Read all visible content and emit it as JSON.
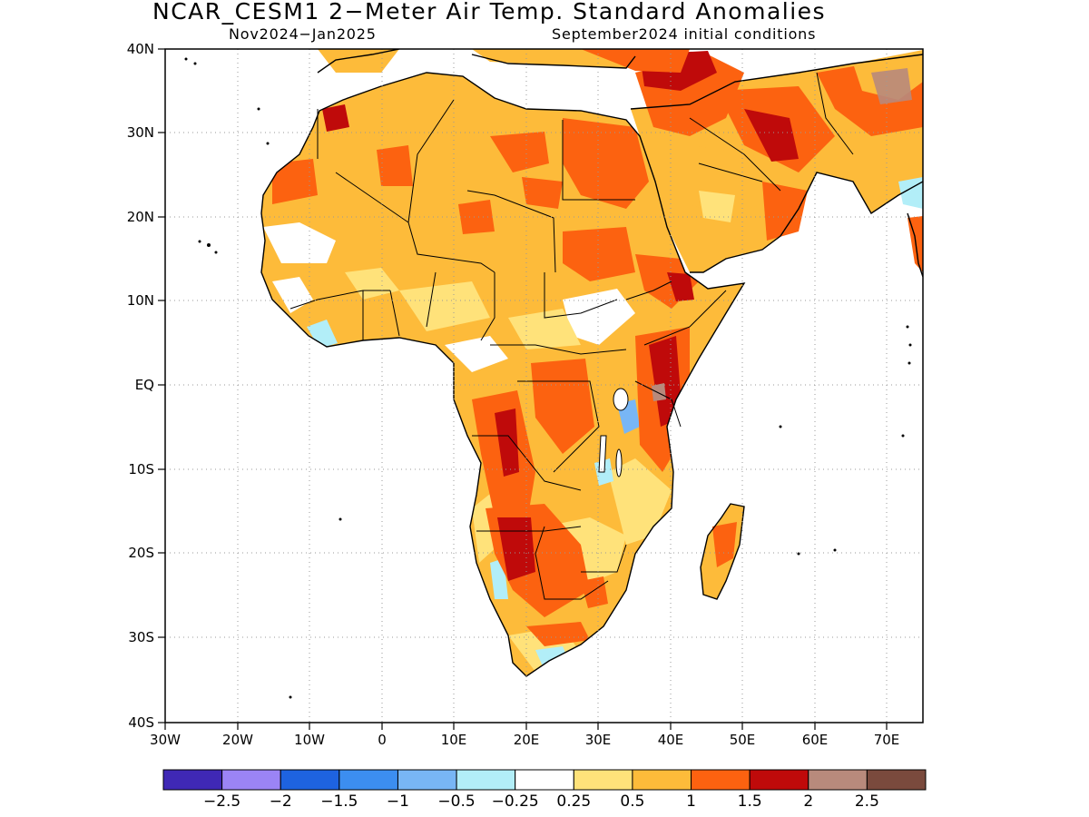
{
  "title": "NCAR_CESM1 2−Meter Air Temp. Standard Anomalies",
  "subtitle_left": "Nov2024−Jan2025",
  "subtitle_right": "September2024 initial conditions",
  "map": {
    "region": "Africa and Arabian Peninsula",
    "lon_range": [
      -30,
      75
    ],
    "lat_range": [
      -40,
      40
    ],
    "gridlines": "dotted",
    "lat_labels": [
      "40N",
      "30N",
      "20N",
      "10N",
      "EQ",
      "10S",
      "20S",
      "30S",
      "40S"
    ],
    "lon_labels": [
      "30W",
      "20W",
      "10W",
      "0",
      "10E",
      "20E",
      "30E",
      "40E",
      "50E",
      "60E",
      "70E"
    ]
  },
  "colorbar": {
    "colors": [
      "#3f28b5",
      "#9b84f5",
      "#1e63e0",
      "#3c8ef0",
      "#78b6f5",
      "#b2eef8",
      "#ffffff",
      "#ffe27a",
      "#fdbb3a",
      "#fc6210",
      "#bf0a0a",
      "#b88a7c",
      "#7a4a3d"
    ],
    "labels": [
      "−2.5",
      "−2",
      "−1.5",
      "−1",
      "−0.5",
      "−0.25",
      "0.25",
      "0.5",
      "1",
      "1.5",
      "2",
      "2.5"
    ]
  }
}
